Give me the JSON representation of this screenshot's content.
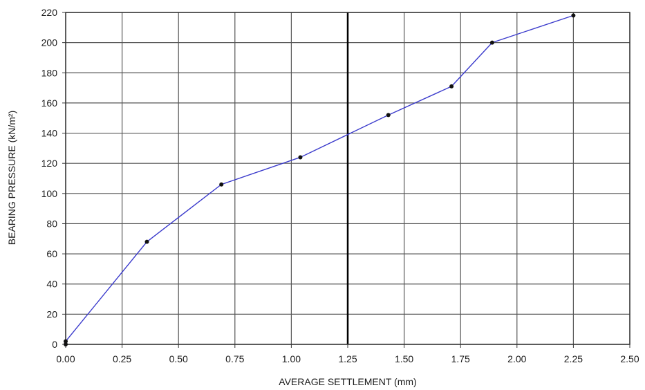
{
  "chart_data": {
    "type": "line",
    "title": "",
    "xlabel": "AVERAGE SETTLEMENT (mm)",
    "ylabel": "BEARING PRESSURE (kN/m²)",
    "xlim": [
      0,
      2.5
    ],
    "ylim": [
      0,
      220
    ],
    "x_ticks": [
      "0.00",
      "0.25",
      "0.50",
      "0.75",
      "1.00",
      "1.25",
      "1.50",
      "1.75",
      "2.00",
      "2.25",
      "2.50"
    ],
    "y_ticks": [
      "0",
      "20",
      "40",
      "60",
      "80",
      "100",
      "120",
      "140",
      "160",
      "180",
      "200",
      "220"
    ],
    "grid": true,
    "reference_line_x": 1.25,
    "series": [
      {
        "color": "#3b3bcc",
        "marker_color": "#111111",
        "x": [
          0.0,
          0.0,
          0.36,
          0.69,
          1.04,
          1.43,
          1.71,
          1.89,
          2.25
        ],
        "y": [
          0,
          2,
          68,
          106,
          124,
          152,
          171,
          200,
          218
        ]
      }
    ]
  }
}
